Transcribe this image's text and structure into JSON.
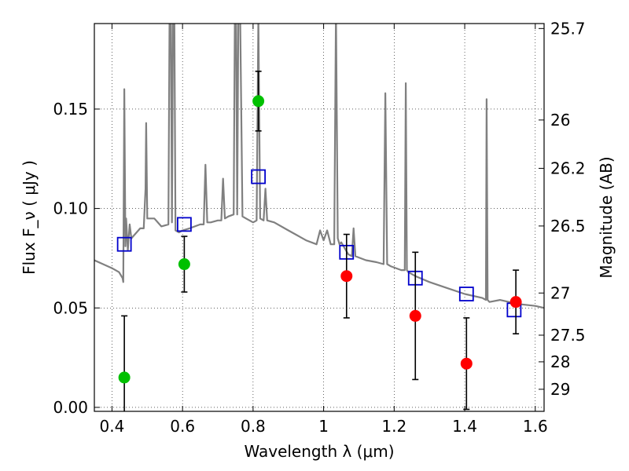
{
  "chart_data": {
    "type": "scatter",
    "xlabel": "Wavelength  λ (μm)",
    "ylabel": "Flux  F_ν  ( μJy )",
    "y2label": "Magnitude (AB)",
    "xlim": [
      0.35,
      1.625
    ],
    "ylim": [
      -0.002,
      0.193
    ],
    "grid": true,
    "x_ticks": [
      0.4,
      0.6,
      0.8,
      1.0,
      1.2,
      1.4,
      1.6
    ],
    "x_tick_labels": [
      "0.4",
      "0.6",
      "0.8",
      "1",
      "1.2",
      "1.4",
      "1.6"
    ],
    "y_ticks": [
      0.0,
      0.05,
      0.1,
      0.15
    ],
    "y_tick_labels": [
      "0.00",
      "0.05",
      "0.10",
      "0.15"
    ],
    "y2_ticks": [
      {
        "label": "25.7",
        "flux": 0.1905
      },
      {
        "label": "26",
        "flux": 0.1445
      },
      {
        "label": "26.2",
        "flux": 0.1202
      },
      {
        "label": "26.5",
        "flux": 0.0912
      },
      {
        "label": "27",
        "flux": 0.0575
      },
      {
        "label": "27.5",
        "flux": 0.0363
      },
      {
        "label": "28",
        "flux": 0.0229
      },
      {
        "label": "29",
        "flux": 0.0091
      }
    ],
    "series": [
      {
        "kind": "line",
        "color": "#808080",
        "x": [
          0.35,
          0.4,
          0.42,
          0.43,
          0.432,
          0.435,
          0.438,
          0.44,
          0.445,
          0.45,
          0.455,
          0.46,
          0.47,
          0.48,
          0.49,
          0.495,
          0.497,
          0.5,
          0.52,
          0.54,
          0.56,
          0.565,
          0.57,
          0.575,
          0.58,
          0.59,
          0.6,
          0.62,
          0.65,
          0.66,
          0.665,
          0.67,
          0.68,
          0.7,
          0.71,
          0.715,
          0.72,
          0.73,
          0.745,
          0.75,
          0.755,
          0.76,
          0.77,
          0.78,
          0.8,
          0.81,
          0.815,
          0.82,
          0.83,
          0.835,
          0.84,
          0.86,
          0.9,
          0.92,
          0.95,
          0.98,
          0.99,
          1.0,
          1.01,
          1.02,
          1.03,
          1.035,
          1.04,
          1.045,
          1.05,
          1.07,
          1.08,
          1.085,
          1.09,
          1.12,
          1.15,
          1.17,
          1.175,
          1.18,
          1.19,
          1.22,
          1.23,
          1.233,
          1.236,
          1.24,
          1.26,
          1.3,
          1.35,
          1.4,
          1.45,
          1.46,
          1.462,
          1.465,
          1.47,
          1.5,
          1.55,
          1.6,
          1.625
        ],
        "y": [
          0.074,
          0.07,
          0.068,
          0.065,
          0.063,
          0.16,
          0.081,
          0.095,
          0.079,
          0.092,
          0.085,
          0.086,
          0.088,
          0.09,
          0.09,
          0.11,
          0.143,
          0.095,
          0.095,
          0.091,
          0.092,
          0.26,
          0.093,
          0.26,
          0.089,
          0.088,
          0.089,
          0.09,
          0.092,
          0.092,
          0.122,
          0.093,
          0.093,
          0.094,
          0.094,
          0.115,
          0.095,
          0.096,
          0.097,
          0.25,
          0.097,
          0.25,
          0.096,
          0.095,
          0.093,
          0.094,
          0.196,
          0.095,
          0.094,
          0.11,
          0.094,
          0.093,
          0.089,
          0.087,
          0.084,
          0.082,
          0.089,
          0.084,
          0.089,
          0.082,
          0.082,
          0.2,
          0.085,
          0.082,
          0.083,
          0.077,
          0.076,
          0.09,
          0.076,
          0.074,
          0.073,
          0.072,
          0.158,
          0.072,
          0.071,
          0.069,
          0.069,
          0.163,
          0.069,
          0.068,
          0.066,
          0.063,
          0.06,
          0.057,
          0.055,
          0.054,
          0.155,
          0.054,
          0.053,
          0.054,
          0.052,
          0.051,
          0.05
        ]
      },
      {
        "kind": "open-square",
        "color": "#0000cc",
        "x": [
          0.435,
          0.605,
          0.815,
          1.065,
          1.26,
          1.405,
          1.54
        ],
        "y": [
          0.082,
          0.092,
          0.116,
          0.078,
          0.065,
          0.057,
          0.049
        ]
      },
      {
        "kind": "point-errorbar",
        "color": "#00c000",
        "x": [
          0.435,
          0.605,
          0.815
        ],
        "y": [
          0.015,
          0.072,
          0.154
        ],
        "yerr": [
          0.031,
          0.014,
          0.015
        ]
      },
      {
        "kind": "point-errorbar",
        "color": "#ff0000",
        "x": [
          1.065,
          1.26,
          1.405,
          1.545
        ],
        "y": [
          0.066,
          0.046,
          0.022,
          0.053
        ],
        "yerr": [
          0.021,
          0.032,
          0.023,
          0.016
        ]
      }
    ]
  }
}
